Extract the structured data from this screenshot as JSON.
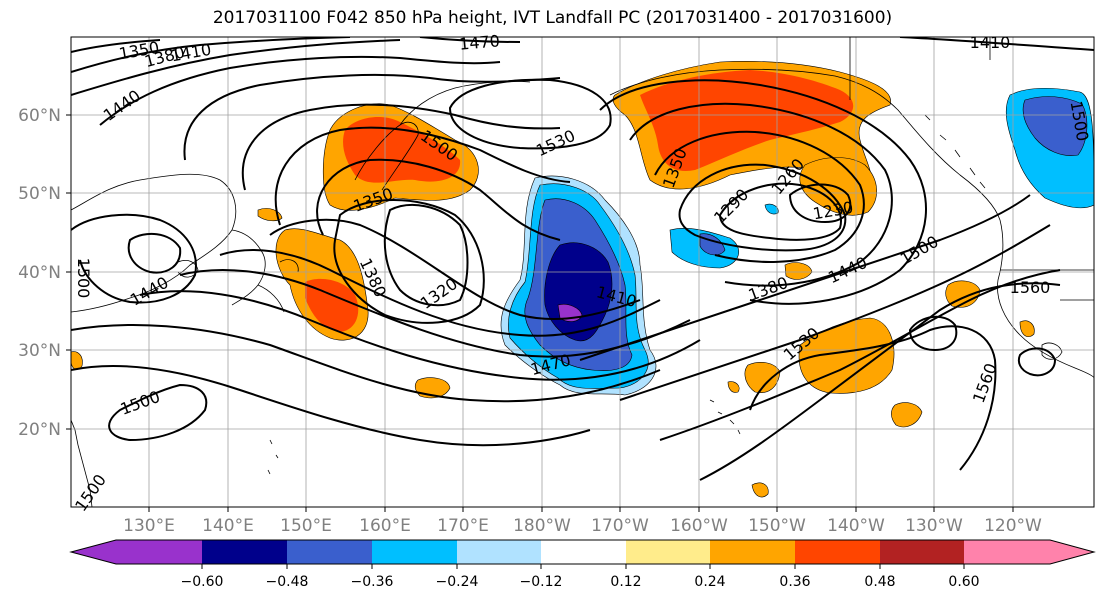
{
  "title": "2017031100 F042 850 hPa height, IVT Landfall PC (2017031400 - 2017031600)",
  "colors": {
    "land_outline": "#000000",
    "grid": "#a0a0a0",
    "tick_label": "#808080"
  },
  "lat_labels": [
    "60°N",
    "50°N",
    "40°N",
    "30°N",
    "20°N"
  ],
  "lon_labels": [
    "130°E",
    "140°E",
    "150°E",
    "160°E",
    "170°E",
    "180°W",
    "170°W",
    "160°W",
    "150°W",
    "140°W",
    "130°W",
    "120°W"
  ],
  "contour_labels": [
    "1350",
    "1380",
    "1410",
    "1440",
    "1470",
    "1500",
    "1530",
    "1500",
    "1350",
    "1320",
    "1380",
    "1410",
    "1470",
    "1350",
    "1290",
    "1260",
    "1230",
    "1380",
    "1440",
    "1500",
    "1560",
    "1530",
    "1560",
    "1500",
    "1410",
    "1500",
    "1440",
    "1500"
  ],
  "colorbar": {
    "colors": [
      "#9932cc",
      "#00008b",
      "#3a5fcd",
      "#00bfff",
      "#b0e2ff",
      "#ffffff",
      "#ffec8b",
      "#ffa500",
      "#ff4500",
      "#b22222",
      "#ff82ab"
    ],
    "tick_labels": [
      "−0.60",
      "−0.48",
      "−0.36",
      "−0.24",
      "−0.12",
      "0.12",
      "0.24",
      "0.36",
      "0.48",
      "0.60"
    ]
  }
}
